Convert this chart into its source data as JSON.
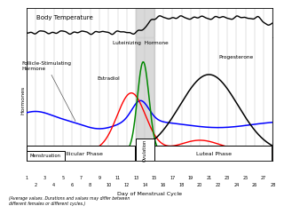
{
  "x_ticks_odd": [
    1,
    3,
    5,
    7,
    9,
    11,
    13,
    15,
    17,
    19,
    21,
    23,
    25,
    27
  ],
  "x_ticks_even": [
    2,
    4,
    6,
    8,
    10,
    12,
    14,
    16,
    18,
    20,
    22,
    24,
    26,
    28
  ],
  "fsh_color": "#0000ff",
  "estradiol_color": "#ff0000",
  "lh_color": "#008800",
  "progesterone_color": "#000000",
  "body_temp_color": "#000000",
  "grid_color": "#bbbbbb",
  "ovulation_shade": "#c0c0c0",
  "title_temp": "Body Temperature",
  "ylabel": "Hormones",
  "xlabel": "Day of Menstrual Cycle",
  "label_fsh": "Follicle-Stimulating\nHormone",
  "label_estradiol": "Estradiol",
  "label_lh": "Luteinizing  Hormone",
  "label_progesterone": "Progesterone",
  "label_follicular": "Follicular Phase",
  "label_menstruation": "Menstruation",
  "label_ovulation": "Ovulation",
  "label_luteal": "Luteal Phase",
  "footnote": "(Average values. Durations and values may differ between\ndifferent females or different cycles.)"
}
